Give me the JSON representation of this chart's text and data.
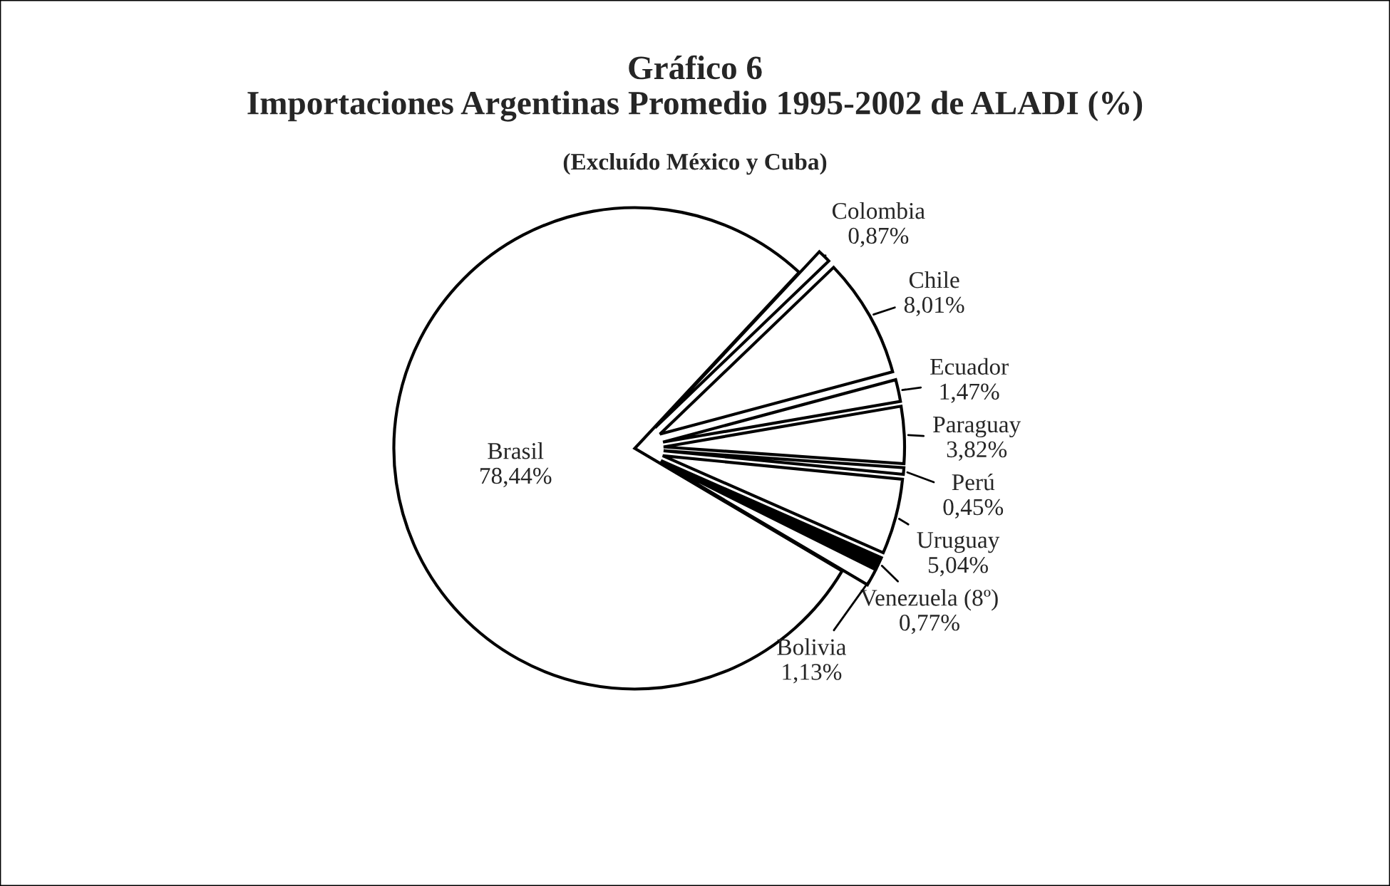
{
  "chart_data": {
    "type": "pie",
    "title": "Gráfico 6\nImportaciones Argentinas Promedio 1995-2002 de ALADI (%)",
    "subtitle": "(Excluído México y Cuba)",
    "categories": [
      "Colombia",
      "Chile",
      "Ecuador",
      "Paraguay",
      "Perú",
      "Uruguay",
      "Venezuela (8º)",
      "Bolivia",
      "Brasil"
    ],
    "values": [
      0.87,
      8.01,
      1.47,
      3.82,
      0.45,
      5.04,
      0.77,
      1.13,
      78.44
    ],
    "value_labels": [
      "0,87%",
      "8,01%",
      "1,47%",
      "3,82%",
      "0,45%",
      "5,04%",
      "0,77%",
      "1,13%",
      "78,44%"
    ],
    "colors": [
      "#ffffff",
      "#ffffff",
      "#ffffff",
      "#ffffff",
      "#ffffff",
      "#ffffff",
      "#000000",
      "#ffffff",
      "#ffffff"
    ],
    "legend": false
  }
}
